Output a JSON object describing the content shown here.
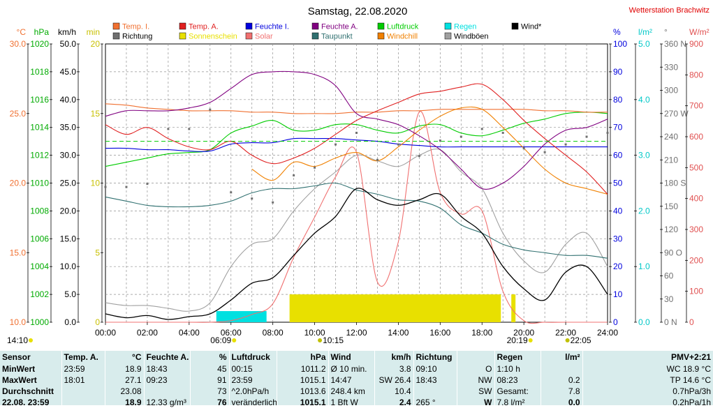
{
  "header": {
    "title": "Samstag, 22.08.2020",
    "station": "Wetterstation Brachwitz"
  },
  "legend": [
    {
      "label": "Temp. I.",
      "color": "#f07030",
      "row": 0
    },
    {
      "label": "Temp. A.",
      "color": "#e02020",
      "row": 0
    },
    {
      "label": "Feuchte I.",
      "color": "#0000dd",
      "row": 0
    },
    {
      "label": "Feuchte A.",
      "color": "#800080",
      "row": 0
    },
    {
      "label": "Luftdruck",
      "color": "#00cc00",
      "row": 0
    },
    {
      "label": "Regen",
      "color": "#00e0e0",
      "row": 0
    },
    {
      "label": "Wind*",
      "color": "#000000",
      "row": 0
    },
    {
      "label": "Richtung",
      "color": "#707070",
      "row": 1
    },
    {
      "label": "Sonnenschein",
      "color": "#e8e000",
      "row": 1
    },
    {
      "label": "Solar",
      "color": "#f07070",
      "row": 1
    },
    {
      "label": "Taupunkt",
      "color": "#307070",
      "row": 1
    },
    {
      "label": "Windchill",
      "color": "#f08000",
      "row": 1
    },
    {
      "label": "Windböen",
      "color": "#a0a0a0",
      "row": 1
    }
  ],
  "axes": {
    "left": [
      {
        "unit": "°C",
        "color": "#f07030",
        "ticks": [
          "30.0",
          "25.0",
          "20.0",
          "15.0",
          "10.0"
        ],
        "max": 30,
        "min": 10
      },
      {
        "unit": "hPa",
        "color": "#00aa00",
        "ticks": [
          "1020",
          "1018",
          "1016",
          "1014",
          "1012",
          "1010",
          "1008",
          "1006",
          "1004",
          "1002",
          "1000"
        ],
        "max": 1020,
        "min": 1000
      },
      {
        "unit": "km/h",
        "color": "#000000",
        "ticks": [
          "50.0",
          "45.0",
          "40.0",
          "35.0",
          "30.0",
          "25.0",
          "20.0",
          "15.0",
          "10.0",
          "5.0",
          "0.0"
        ],
        "max": 50,
        "min": 0
      },
      {
        "unit": "min",
        "color": "#c8c000",
        "ticks": [
          "20",
          "15",
          "10",
          "5",
          "0"
        ],
        "max": 20,
        "min": 0
      }
    ],
    "right": [
      {
        "unit": "%",
        "color": "#0000dd",
        "ticks": [
          "100",
          "90",
          "80",
          "70",
          "60",
          "50",
          "40",
          "30",
          "20",
          "10",
          "0"
        ],
        "max": 100,
        "min": 0
      },
      {
        "unit": "l/m²",
        "color": "#00c8c8",
        "ticks": [
          "5.0",
          "4.0",
          "3.0",
          "2.0",
          "1.0",
          "0.0"
        ],
        "max": 5,
        "min": 0
      },
      {
        "unit": "°",
        "color": "#707070",
        "ticks": [
          "360 N",
          "330",
          "300",
          "270 W",
          "240",
          "210",
          "180 S",
          "150",
          "120",
          "90 O",
          "60",
          "30",
          "0 N"
        ],
        "max": 360,
        "min": 0
      },
      {
        "unit": "W/m²",
        "color": "#e05050",
        "ticks": [
          "900",
          "800",
          "700",
          "600",
          "500",
          "400",
          "300",
          "200",
          "100",
          "0"
        ],
        "max": 900,
        "min": 0
      }
    ],
    "x_ticks": [
      "00:00",
      "02:00",
      "04:00",
      "06:00",
      "08:00",
      "10:00",
      "12:00",
      "14:00",
      "16:00",
      "18:00",
      "20:00",
      "22:00",
      "24:00"
    ]
  },
  "markers": {
    "moonrise": "14:10",
    "sunrise": "06:09",
    "moon_culmination": "10:15",
    "sunset": "20:19",
    "moonset": "22:05"
  },
  "chart_data": {
    "type": "line",
    "title": "Samstag, 22.08.2020",
    "x_range": [
      "00:00",
      "24:00"
    ],
    "grid": true,
    "hours": [
      0,
      1,
      2,
      3,
      4,
      5,
      6,
      7,
      8,
      9,
      10,
      11,
      12,
      13,
      14,
      15,
      16,
      17,
      18,
      19,
      20,
      21,
      22,
      23,
      24
    ],
    "series": [
      {
        "name": "Temp. I.",
        "unit": "°C",
        "axis": "°C",
        "color": "#f07030",
        "values": [
          25.7,
          25.6,
          25.4,
          25.3,
          25.2,
          25.2,
          25.2,
          25.1,
          25.1,
          25.0,
          25.0,
          25.0,
          25.1,
          25.1,
          25.2,
          25.2,
          25.3,
          25.3,
          25.3,
          25.3,
          25.3,
          25.2,
          25.2,
          25.1,
          25.1
        ]
      },
      {
        "name": "Temp. A.",
        "unit": "°C",
        "axis": "°C",
        "color": "#e02020",
        "values": [
          24.2,
          23.5,
          24.0,
          23.2,
          22.6,
          22.4,
          23.0,
          22.0,
          21.4,
          21.8,
          22.5,
          23.5,
          24.5,
          25.2,
          25.8,
          26.4,
          26.6,
          26.9,
          27.1,
          26.0,
          24.5,
          23.2,
          22.0,
          20.8,
          19.2
        ]
      },
      {
        "name": "Feuchte I.",
        "unit": "%",
        "axis": "%",
        "color": "#0000dd",
        "values": [
          62.5,
          62.5,
          62.0,
          62.0,
          61.5,
          61.5,
          64.0,
          64.5,
          64.5,
          66.0,
          66.0,
          66.0,
          65.5,
          65.0,
          64.0,
          63.5,
          63.0,
          63.0,
          63.0,
          63.0,
          63.0,
          63.0,
          63.0,
          63.0,
          63.0
        ]
      },
      {
        "name": "Feuchte A.",
        "unit": "%",
        "axis": "%",
        "color": "#800080",
        "values": [
          74,
          76,
          76,
          76,
          77,
          79,
          84,
          89,
          90,
          90,
          89,
          85,
          75,
          73,
          71,
          67,
          62,
          55,
          48,
          50,
          56,
          64,
          69,
          70,
          73
        ]
      },
      {
        "name": "Luftdruck",
        "unit": "hPa",
        "axis": "hPa",
        "color": "#00cc00",
        "values": [
          1011.2,
          1011.5,
          1011.8,
          1012.1,
          1012.2,
          1012.4,
          1013.6,
          1014.1,
          1014.5,
          1013.8,
          1013.8,
          1014.2,
          1014.2,
          1013.8,
          1013.6,
          1014.1,
          1014.2,
          1013.6,
          1013.4,
          1013.8,
          1014.3,
          1014.6,
          1015.0,
          1015.1,
          1015.0
        ]
      },
      {
        "name": "Taupunkt",
        "unit": "°C",
        "axis": "°C",
        "color": "#307070",
        "values": [
          19.0,
          18.7,
          18.4,
          18.3,
          18.3,
          18.4,
          18.7,
          19.3,
          19.6,
          19.6,
          19.8,
          20.0,
          19.5,
          19.2,
          18.8,
          18.7,
          18.2,
          17.0,
          16.4,
          15.6,
          15.2,
          15.0,
          14.8,
          14.8,
          14.6
        ]
      },
      {
        "name": "Windchill",
        "unit": "°C",
        "axis": "°C",
        "color": "#f08000",
        "values": [
          null,
          null,
          null,
          null,
          null,
          null,
          null,
          21.0,
          20.2,
          21.5,
          21.2,
          21.8,
          22.2,
          21.6,
          22.6,
          23.8,
          24.8,
          25.4,
          25.3,
          24.0,
          22.5,
          21.0,
          20.0,
          19.6,
          19.2
        ]
      },
      {
        "name": "Wind*",
        "unit": "km/h",
        "axis": "km/h",
        "color": "#000000",
        "values": [
          1.5,
          0.8,
          1.2,
          0.5,
          1.0,
          1.5,
          4.0,
          7.0,
          8.0,
          12.0,
          16.0,
          19.0,
          24.0,
          22.0,
          21.0,
          22.0,
          23.0,
          19.0,
          16.0,
          10.0,
          6.0,
          4.0,
          9.0,
          10.0,
          5.0
        ]
      },
      {
        "name": "Windböen",
        "unit": "km/h",
        "axis": "km/h",
        "color": "#a0a0a0",
        "values": [
          3.5,
          3.0,
          3.0,
          2.5,
          2.0,
          3.5,
          10.0,
          14.0,
          15.0,
          20.0,
          24.0,
          27.0,
          30.0,
          29.0,
          28.0,
          30.0,
          31.0,
          27.0,
          24.0,
          16.0,
          11.0,
          9.0,
          14.0,
          16.0,
          10.0
        ]
      },
      {
        "name": "Solar",
        "unit": "W/m²",
        "axis": "W/m²",
        "color": "#f07070",
        "values": [
          0,
          0,
          0,
          0,
          0,
          0,
          5,
          25,
          60,
          210,
          340,
          470,
          550,
          130,
          260,
          680,
          420,
          350,
          360,
          100,
          5,
          0,
          0,
          0,
          0
        ]
      }
    ],
    "direction": {
      "name": "Richtung",
      "unit": "°",
      "axis": "°",
      "color": "#707070",
      "values": [
        175,
        175,
        179,
        250,
        250,
        275,
        168,
        160,
        155,
        190,
        200,
        230,
        245,
        210,
        230,
        215,
        235,
        240,
        250,
        245,
        225,
        220,
        230,
        240,
        245
      ]
    },
    "sunshine": {
      "name": "Sonnenschein",
      "unit": "min",
      "axis": "min",
      "color": "#e8e000",
      "intervals": [
        [
          8.8,
          18.9
        ],
        [
          19.4,
          19.6
        ]
      ],
      "level_min": 2
    },
    "rain": {
      "name": "Regen",
      "unit": "l/m²",
      "axis": "l/m²",
      "color": "#00e0e0",
      "intervals": [
        [
          5.3,
          7.7
        ]
      ],
      "level": 0.2
    }
  },
  "stats": {
    "rows": [
      [
        "Sensor",
        "Temp. A.",
        "°C",
        "Feuchte A.",
        "%",
        "Luftdruck",
        "hPa",
        "Wind",
        "km/h",
        "Richtung",
        "",
        "Regen",
        "l/m²",
        "PMV+2:21"
      ],
      [
        "MinWert",
        "23:59",
        "18.9",
        "18:43",
        "45",
        "00:15",
        "1011.2",
        "Ø 10 min.",
        "3.8",
        "09:10",
        "O",
        "1:10 h",
        "",
        "WC 18.9 °C"
      ],
      [
        "MaxWert",
        "18:01",
        "27.1",
        "09:23",
        "91",
        "23:59",
        "1015.1",
        "14:47",
        "SW 26.4",
        "18:43",
        "NW",
        "08:23",
        "0.2",
        "TP 14.6 °C"
      ],
      [
        "Durchschnitt",
        "",
        "23.08",
        "",
        "73",
        "^2.0hPa/h",
        "1013.6",
        "248.4 km",
        "10.4",
        "",
        "SW",
        "Gesamt:",
        "7.8",
        "0.7hPa/3h"
      ],
      [
        "22.08. 23:59",
        "",
        "18.9",
        "12.33 g/m³",
        "76",
        "veränderlich",
        "1015.1",
        "1 Bft W",
        "2.4",
        "265 °",
        "W",
        "7.8 l/m²",
        "0.0",
        "0.2hPa/1h"
      ]
    ]
  }
}
